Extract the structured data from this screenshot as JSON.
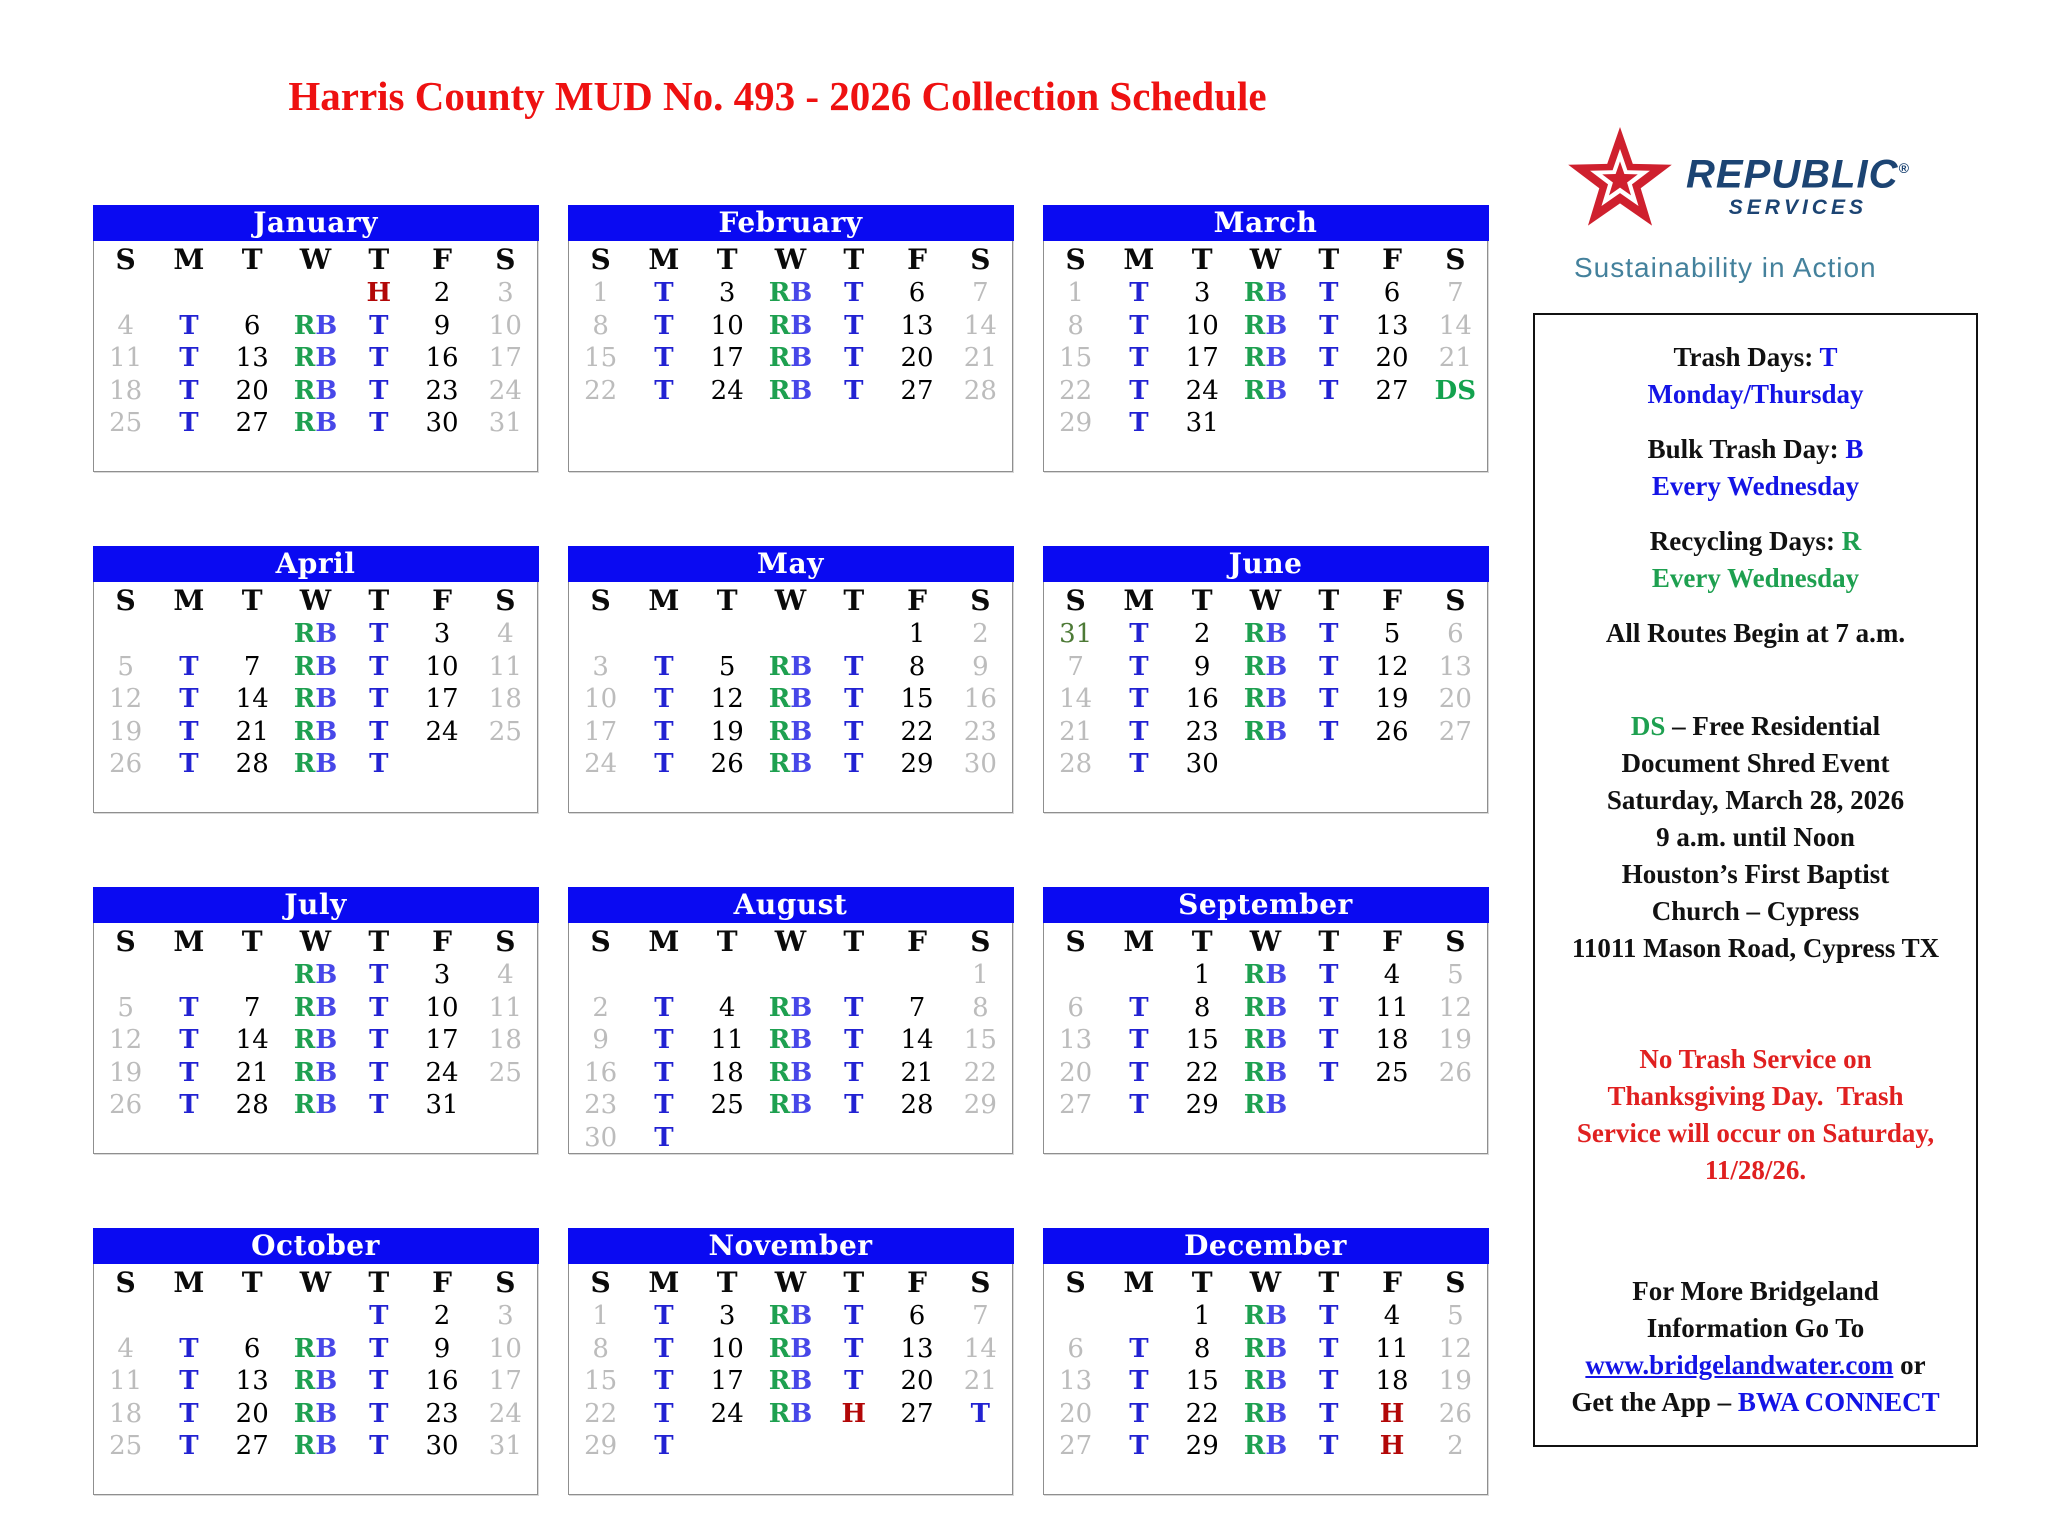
{
  "title": "Harris County MUD No. 493 - 2026 Collection Schedule",
  "logo": {
    "brand": "REPUBLIC",
    "registered": "®",
    "sub": "SERVICES",
    "tagline": "Sustainability in Action"
  },
  "colors": {
    "header_bar": "#0a0af2",
    "trash_t": "#2222d2",
    "recycle_r": "#1ea050",
    "bulk_b": "#4747e8",
    "holiday_h": "#b20707",
    "shred_ds": "#13a24e",
    "weekend_gray": "#bcbcbc",
    "prev_month_green": "#4d7a36",
    "title_red": "#ee1111",
    "panel_red": "#e02020",
    "panel_blue": "#1414e6",
    "panel_green": "#1ea050",
    "link_blue": "#1414e6",
    "brand_navy": "#1c4473",
    "tagline_teal": "#44819c",
    "logo_red": "#cf202e"
  },
  "calendar": {
    "day_headers": [
      "S",
      "M",
      "T",
      "W",
      "T",
      "F",
      "S"
    ],
    "months": [
      {
        "name": "January",
        "weeks": [
          [
            "",
            "",
            "",
            "",
            "H",
            "d:2",
            "g:3"
          ],
          [
            "g:4",
            "T",
            "d:6",
            "RB",
            "T",
            "d:9",
            "g:10"
          ],
          [
            "g:11",
            "T",
            "d:13",
            "RB",
            "T",
            "d:16",
            "g:17"
          ],
          [
            "g:18",
            "T",
            "d:20",
            "RB",
            "T",
            "d:23",
            "g:24"
          ],
          [
            "g:25",
            "T",
            "d:27",
            "RB",
            "T",
            "d:30",
            "g:31"
          ]
        ]
      },
      {
        "name": "February",
        "weeks": [
          [
            "g:1",
            "T",
            "d:3",
            "RB",
            "T",
            "d:6",
            "g:7"
          ],
          [
            "g:8",
            "T",
            "d:10",
            "RB",
            "T",
            "d:13",
            "g:14"
          ],
          [
            "g:15",
            "T",
            "d:17",
            "RB",
            "T",
            "d:20",
            "g:21"
          ],
          [
            "g:22",
            "T",
            "d:24",
            "RB",
            "T",
            "d:27",
            "g:28"
          ]
        ]
      },
      {
        "name": "March",
        "weeks": [
          [
            "g:1",
            "T",
            "d:3",
            "RB",
            "T",
            "d:6",
            "g:7"
          ],
          [
            "g:8",
            "T",
            "d:10",
            "RB",
            "T",
            "d:13",
            "g:14"
          ],
          [
            "g:15",
            "T",
            "d:17",
            "RB",
            "T",
            "d:20",
            "g:21"
          ],
          [
            "g:22",
            "T",
            "d:24",
            "RB",
            "T",
            "d:27",
            "DS"
          ],
          [
            "g:29",
            "T",
            "d:31",
            "",
            "",
            "",
            ""
          ]
        ]
      },
      {
        "name": "April",
        "weeks": [
          [
            "",
            "",
            "",
            "RB",
            "T",
            "d:3",
            "g:4"
          ],
          [
            "g:5",
            "T",
            "d:7",
            "RB",
            "T",
            "d:10",
            "g:11"
          ],
          [
            "g:12",
            "T",
            "d:14",
            "RB",
            "T",
            "d:17",
            "g:18"
          ],
          [
            "g:19",
            "T",
            "d:21",
            "RB",
            "T",
            "d:24",
            "g:25"
          ],
          [
            "g:26",
            "T",
            "d:28",
            "RB",
            "T",
            "",
            ""
          ]
        ]
      },
      {
        "name": "May",
        "weeks": [
          [
            "",
            "",
            "",
            "",
            "",
            "d:1",
            "g:2"
          ],
          [
            "g:3",
            "T",
            "d:5",
            "RB",
            "T",
            "d:8",
            "g:9"
          ],
          [
            "g:10",
            "T",
            "d:12",
            "RB",
            "T",
            "d:15",
            "g:16"
          ],
          [
            "g:17",
            "T",
            "d:19",
            "RB",
            "T",
            "d:22",
            "g:23"
          ],
          [
            "g:24",
            "T",
            "d:26",
            "RB",
            "T",
            "d:29",
            "g:30"
          ]
        ]
      },
      {
        "name": "June",
        "weeks": [
          [
            "p:31",
            "T",
            "d:2",
            "RB",
            "T",
            "d:5",
            "g:6"
          ],
          [
            "g:7",
            "T",
            "d:9",
            "RB",
            "T",
            "d:12",
            "g:13"
          ],
          [
            "g:14",
            "T",
            "d:16",
            "RB",
            "T",
            "d:19",
            "g:20"
          ],
          [
            "g:21",
            "T",
            "d:23",
            "RB",
            "T",
            "d:26",
            "g:27"
          ],
          [
            "g:28",
            "T",
            "d:30",
            "",
            "",
            "",
            ""
          ]
        ]
      },
      {
        "name": "July",
        "weeks": [
          [
            "",
            "",
            "",
            "RB",
            "T",
            "d:3",
            "g:4"
          ],
          [
            "g:5",
            "T",
            "d:7",
            "RB",
            "T",
            "d:10",
            "g:11"
          ],
          [
            "g:12",
            "T",
            "d:14",
            "RB",
            "T",
            "d:17",
            "g:18"
          ],
          [
            "g:19",
            "T",
            "d:21",
            "RB",
            "T",
            "d:24",
            "g:25"
          ],
          [
            "g:26",
            "T",
            "d:28",
            "RB",
            "T",
            "d:31",
            ""
          ]
        ]
      },
      {
        "name": "August",
        "weeks": [
          [
            "",
            "",
            "",
            "",
            "",
            "",
            "g:1"
          ],
          [
            "g:2",
            "T",
            "d:4",
            "RB",
            "T",
            "d:7",
            "g:8"
          ],
          [
            "g:9",
            "T",
            "d:11",
            "RB",
            "T",
            "d:14",
            "g:15"
          ],
          [
            "g:16",
            "T",
            "d:18",
            "RB",
            "T",
            "d:21",
            "g:22"
          ],
          [
            "g:23",
            "T",
            "d:25",
            "RB",
            "T",
            "d:28",
            "g:29"
          ],
          [
            "g:30",
            "T",
            "",
            "",
            "",
            "",
            ""
          ]
        ]
      },
      {
        "name": "September",
        "weeks": [
          [
            "",
            "",
            "d:1",
            "RB",
            "T",
            "d:4",
            "g:5"
          ],
          [
            "g:6",
            "T",
            "d:8",
            "RB",
            "T",
            "d:11",
            "g:12"
          ],
          [
            "g:13",
            "T",
            "d:15",
            "RB",
            "T",
            "d:18",
            "g:19"
          ],
          [
            "g:20",
            "T",
            "d:22",
            "RB",
            "T",
            "d:25",
            "g:26"
          ],
          [
            "g:27",
            "T",
            "d:29",
            "RB",
            "",
            "",
            ""
          ]
        ]
      },
      {
        "name": "October",
        "weeks": [
          [
            "",
            "",
            "",
            "",
            "T",
            "d:2",
            "g:3"
          ],
          [
            "g:4",
            "T",
            "d:6",
            "RB",
            "T",
            "d:9",
            "g:10"
          ],
          [
            "g:11",
            "T",
            "d:13",
            "RB",
            "T",
            "d:16",
            "g:17"
          ],
          [
            "g:18",
            "T",
            "d:20",
            "RB",
            "T",
            "d:23",
            "g:24"
          ],
          [
            "g:25",
            "T",
            "d:27",
            "RB",
            "T",
            "d:30",
            "g:31"
          ]
        ]
      },
      {
        "name": "November",
        "weeks": [
          [
            "g:1",
            "T",
            "d:3",
            "RB",
            "T",
            "d:6",
            "g:7"
          ],
          [
            "g:8",
            "T",
            "d:10",
            "RB",
            "T",
            "d:13",
            "g:14"
          ],
          [
            "g:15",
            "T",
            "d:17",
            "RB",
            "T",
            "d:20",
            "g:21"
          ],
          [
            "g:22",
            "T",
            "d:24",
            "RB",
            "H",
            "d:27",
            "T"
          ],
          [
            "g:29",
            "T",
            "",
            "",
            "",
            "",
            ""
          ]
        ]
      },
      {
        "name": "December",
        "weeks": [
          [
            "",
            "",
            "d:1",
            "RB",
            "T",
            "d:4",
            "g:5"
          ],
          [
            "g:6",
            "T",
            "d:8",
            "RB",
            "T",
            "d:11",
            "g:12"
          ],
          [
            "g:13",
            "T",
            "d:15",
            "RB",
            "T",
            "d:18",
            "g:19"
          ],
          [
            "g:20",
            "T",
            "d:22",
            "RB",
            "T",
            "H",
            "g:26"
          ],
          [
            "g:27",
            "T",
            "d:29",
            "RB",
            "T",
            "H",
            "g:2"
          ]
        ]
      }
    ]
  },
  "panel": {
    "lines": [
      {
        "segs": [
          {
            "t": "Trash Days: ",
            "c": "k"
          },
          {
            "t": "T",
            "c": "b"
          }
        ]
      },
      {
        "segs": [
          {
            "t": "Monday/Thursday",
            "c": "b"
          }
        ]
      },
      {
        "gap": 18
      },
      {
        "segs": [
          {
            "t": "Bulk Trash Day: ",
            "c": "k"
          },
          {
            "t": "B",
            "c": "b"
          }
        ]
      },
      {
        "segs": [
          {
            "t": "Every Wednesday",
            "c": "b"
          }
        ]
      },
      {
        "gap": 18
      },
      {
        "segs": [
          {
            "t": "Recycling Days: ",
            "c": "k"
          },
          {
            "t": "R",
            "c": "g"
          }
        ]
      },
      {
        "segs": [
          {
            "t": "Every Wednesday",
            "c": "g"
          }
        ]
      },
      {
        "gap": 18
      },
      {
        "segs": [
          {
            "t": "All Routes Begin at 7 a.m.",
            "c": "k"
          }
        ]
      },
      {
        "gap": 56
      },
      {
        "segs": [
          {
            "t": "DS",
            "c": "g"
          },
          {
            "t": " – Free Residential",
            "c": "k"
          }
        ]
      },
      {
        "segs": [
          {
            "t": "Document Shred Event",
            "c": "k"
          }
        ]
      },
      {
        "segs": [
          {
            "t": "Saturday, March 28, 2026",
            "c": "k"
          }
        ]
      },
      {
        "segs": [
          {
            "t": "9 a.m. until Noon",
            "c": "k"
          }
        ]
      },
      {
        "segs": [
          {
            "t": "Houston’s First Baptist",
            "c": "k"
          }
        ]
      },
      {
        "segs": [
          {
            "t": "Church – Cypress",
            "c": "k"
          }
        ]
      },
      {
        "segs": [
          {
            "t": "11011 Mason Road, Cypress TX",
            "c": "k"
          }
        ]
      },
      {
        "gap": 74
      },
      {
        "segs": [
          {
            "t": "No Trash Service on",
            "c": "r"
          }
        ]
      },
      {
        "segs": [
          {
            "t": "Thanksgiving Day.  Trash",
            "c": "r"
          }
        ]
      },
      {
        "segs": [
          {
            "t": "Service will occur on Saturday,",
            "c": "r"
          }
        ]
      },
      {
        "segs": [
          {
            "t": "11/28/26.",
            "c": "r"
          }
        ]
      },
      {
        "gap": 84
      },
      {
        "segs": [
          {
            "t": "For More Bridgeland",
            "c": "k"
          }
        ]
      },
      {
        "segs": [
          {
            "t": "Information Go To",
            "c": "k"
          }
        ]
      },
      {
        "segs": [
          {
            "t": "www.bridgelandwater.com",
            "c": "link"
          },
          {
            "t": " or",
            "c": "k"
          }
        ]
      },
      {
        "segs": [
          {
            "t": "Get the App – ",
            "c": "k"
          },
          {
            "t": "BWA CONNECT",
            "c": "b"
          }
        ]
      }
    ]
  }
}
